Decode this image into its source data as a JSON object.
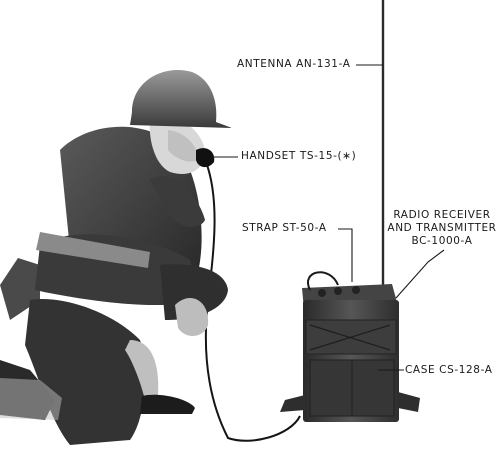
{
  "figure": {
    "labels": {
      "antenna": "ANTENNA AN-131-A",
      "handset": "HANDSET TS-15-(∗)",
      "strap": "STRAP ST-50-A",
      "radio_line1": "RADIO RECEIVER",
      "radio_line2": "AND TRANSMITTER",
      "radio_line3": "BC-1000-A",
      "case": "CASE CS-128-A"
    }
  }
}
